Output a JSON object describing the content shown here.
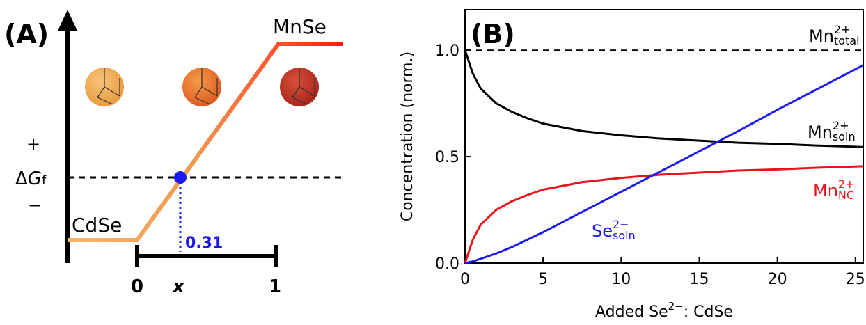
{
  "panel_a": {
    "label": "(A)",
    "top_phase": "MnSe",
    "bottom_phase": "CdSe",
    "plus": "+",
    "minus": "−",
    "energy_symbol": "Δ",
    "energy_var": "G",
    "energy_sub": "f",
    "x_marked": "0.31",
    "x_start": "0",
    "x_var": "x",
    "x_end": "1"
  },
  "chart_data": {
    "type": "line",
    "panel_label": "(B)",
    "xlabel": {
      "text": "Added Se",
      "sup": "2−",
      "rest": ": CdSe"
    },
    "ylabel": "Concentration (norm.)",
    "xlim": [
      0,
      25.5
    ],
    "ylim": [
      0,
      1.19
    ],
    "xticks": [
      0,
      5,
      10,
      15,
      20,
      25
    ],
    "yticks": [
      {
        "value": 0,
        "label": "0.0"
      },
      {
        "value": 0.5,
        "label": "0.5"
      },
      {
        "value": 1,
        "label": "1.0"
      }
    ],
    "x": [
      0,
      0.5,
      1,
      2,
      3,
      4,
      5,
      7.5,
      10,
      12.5,
      15,
      17.5,
      20,
      22.5,
      25.5
    ],
    "series": [
      {
        "name": "Mn",
        "charge": "2+",
        "subscript": "total",
        "color": "#000000",
        "dashed": true,
        "values": [
          1,
          1,
          1,
          1,
          1,
          1,
          1,
          1,
          1,
          1,
          1,
          1,
          1,
          1,
          1
        ]
      },
      {
        "name": "Mn",
        "charge": "2+",
        "subscript": "soln",
        "color": "#000000",
        "values": [
          1.0,
          0.89,
          0.82,
          0.75,
          0.71,
          0.68,
          0.655,
          0.62,
          0.6,
          0.585,
          0.575,
          0.565,
          0.56,
          0.552,
          0.545
        ]
      },
      {
        "name": "Mn",
        "charge": "2+",
        "subscript": "NC",
        "color": "#e8141b",
        "values": [
          0,
          0.11,
          0.18,
          0.25,
          0.29,
          0.32,
          0.345,
          0.38,
          0.4,
          0.415,
          0.425,
          0.435,
          0.44,
          0.448,
          0.455
        ]
      },
      {
        "name": "Se",
        "charge": "2−",
        "subscript": "soln",
        "color": "#1a1aee",
        "values": [
          0,
          0.008,
          0.02,
          0.045,
          0.075,
          0.11,
          0.145,
          0.24,
          0.335,
          0.43,
          0.525,
          0.62,
          0.72,
          0.815,
          0.93
        ]
      }
    ]
  }
}
